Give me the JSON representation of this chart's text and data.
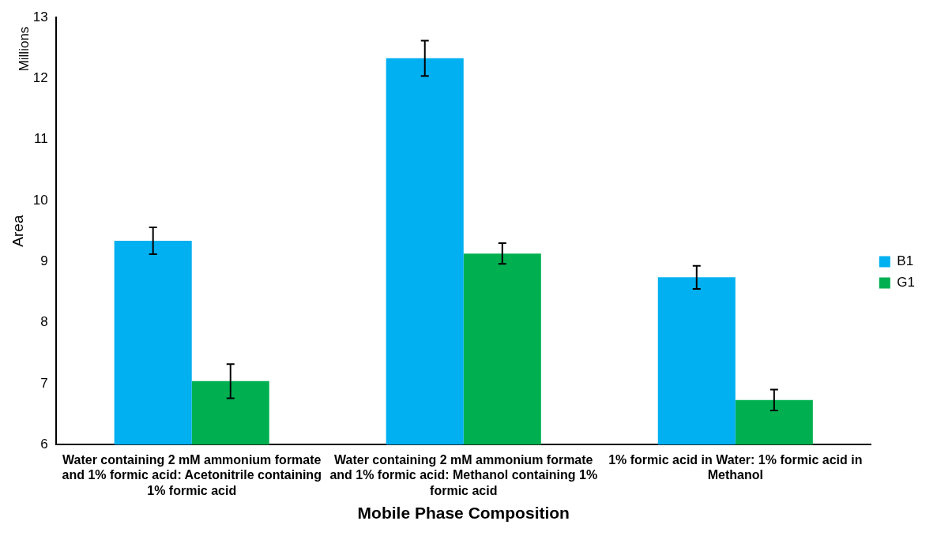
{
  "chart_data": {
    "type": "bar",
    "xlabel": "Mobile Phase Composition",
    "ylabel": "Area",
    "annotations": [
      "Millions"
    ],
    "categories": [
      "Water containing 2 mM ammonium formate and 1% formic acid: Acetonitrile containing 1% formic acid",
      "Water containing 2 mM ammonium formate and 1% formic acid: Methanol containing 1% formic acid",
      "1% formic acid in Water: 1% formic acid in Methanol"
    ],
    "series": [
      {
        "name": "B1",
        "color": "#00b0f0",
        "values": [
          9.34,
          12.33,
          8.74
        ],
        "errors": [
          0.22,
          0.29,
          0.19
        ]
      },
      {
        "name": "G1",
        "color": "#00b050",
        "values": [
          7.04,
          9.13,
          6.73
        ],
        "errors": [
          0.28,
          0.17,
          0.17
        ]
      }
    ],
    "ylim": [
      6,
      13
    ],
    "yticks": [
      6,
      7,
      8,
      9,
      10,
      11,
      12,
      13
    ],
    "grid": false,
    "legend": "right"
  }
}
